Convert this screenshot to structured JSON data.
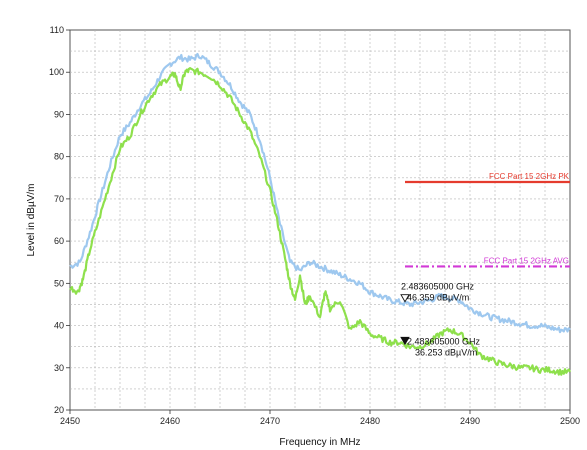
{
  "chart_data": {
    "type": "line",
    "xlabel": "Frequency in MHz",
    "ylabel": "Level in dBµV/m",
    "xlim": [
      2450,
      2500
    ],
    "ylim": [
      20,
      110
    ],
    "x_ticks": [
      "2450",
      "2460",
      "2470",
      "2480",
      "2490",
      "2500"
    ],
    "y_ticks": [
      "20",
      "30",
      "40",
      "50",
      "60",
      "70",
      "80",
      "90",
      "100",
      "110"
    ],
    "grid": "dashed",
    "series": [
      {
        "color": "#9ec8ef",
        "x": [
          2450,
          2451,
          2452,
          2453,
          2454,
          2455,
          2456,
          2457,
          2458,
          2459,
          2460,
          2461,
          2462,
          2463,
          2464,
          2465,
          2466,
          2467,
          2468,
          2469,
          2470,
          2471,
          2472,
          2473,
          2474,
          2475,
          2476,
          2477,
          2478,
          2479,
          2480,
          2481,
          2482,
          2483,
          2484,
          2485,
          2486,
          2487,
          2488,
          2489,
          2490,
          2491,
          2492,
          2493,
          2494,
          2495,
          2496,
          2497,
          2498,
          2499,
          2500
        ],
        "y": [
          54,
          55,
          62,
          70,
          78,
          85,
          88,
          92,
          95,
          99,
          102,
          103.5,
          103,
          104,
          102,
          100,
          97,
          93,
          90,
          84,
          75,
          64,
          55,
          53,
          55,
          54,
          53,
          52,
          51,
          50,
          48,
          47,
          46,
          45.5,
          45,
          45.5,
          46,
          47,
          46.5,
          46,
          44,
          43,
          42,
          41.5,
          41,
          40.5,
          40,
          40,
          39.5,
          39,
          39
        ]
      },
      {
        "color": "#8ee04c",
        "x": [
          2450,
          2450.8,
          2451.3,
          2452,
          2453,
          2454,
          2455,
          2456,
          2457,
          2458,
          2459,
          2460,
          2460.5,
          2461,
          2461.5,
          2462,
          2463,
          2464,
          2465,
          2466,
          2467,
          2468,
          2469,
          2470,
          2470.8,
          2471.5,
          2472,
          2472.5,
          2473,
          2473.5,
          2474,
          2475,
          2475.5,
          2476,
          2477,
          2478,
          2479,
          2480,
          2481,
          2482,
          2483,
          2484,
          2485,
          2486,
          2487,
          2488,
          2489,
          2490,
          2491,
          2492,
          2493,
          2494,
          2495,
          2496,
          2497,
          2498,
          2499,
          2500
        ],
        "y": [
          49,
          48,
          51,
          58,
          66,
          74,
          82,
          85,
          90,
          94,
          97,
          99,
          99.5,
          96,
          100,
          100.5,
          100,
          99,
          97,
          94,
          90,
          86,
          80,
          72,
          64,
          56,
          50,
          46,
          52,
          45,
          47,
          42,
          48,
          44,
          46,
          39,
          41,
          38,
          37,
          36,
          36,
          35,
          35,
          36,
          38,
          39,
          38,
          36,
          33,
          32,
          31,
          30.5,
          30,
          30,
          29.5,
          29.5,
          29,
          29
        ]
      }
    ],
    "limit_lines": [
      {
        "label": "FCC Part 15 2GHz  PK",
        "y": 74,
        "x_start": 2483.5,
        "x_end": 2500,
        "color": "#e53b2e",
        "style": "solid"
      },
      {
        "label": "FCC Part 15 2GHz  AVG",
        "y": 54,
        "x_start": 2483.5,
        "x_end": 2500,
        "color": "#d23ad6",
        "style": "dash-dot"
      }
    ],
    "markers": [
      {
        "x": 2483.5,
        "y": 46.359,
        "freq_text": "2.483605000 GHz",
        "level_text": "46.359 dBµV/m",
        "filled": false
      },
      {
        "x": 2483.5,
        "y": 36.253,
        "freq_text": "2.483605000 GHz",
        "level_text": "36.253 dBµV/m",
        "filled": true
      }
    ]
  }
}
